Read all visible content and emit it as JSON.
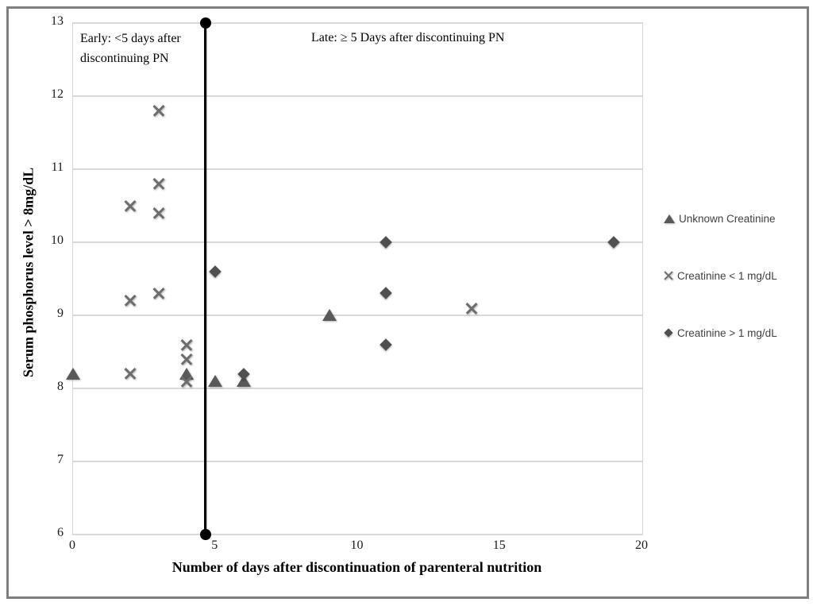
{
  "figure": {
    "border_color": "#7f7f7f",
    "gridline_color": "#d9d9d9",
    "background_color": "#ffffff"
  },
  "chart_data": {
    "type": "scatter",
    "title": "",
    "xlabel": "Number of days after discontinuation of parenteral nutrition",
    "ylabel": "Serum phosphorus level > 8mg/dL",
    "xlim": [
      0,
      20
    ],
    "ylim": [
      6,
      13
    ],
    "x_ticks": [
      0,
      5,
      10,
      15,
      20
    ],
    "y_ticks": [
      6,
      7,
      8,
      9,
      10,
      11,
      12,
      13
    ],
    "grid": "horizontal-only",
    "legend_position": "right",
    "annotations": {
      "early": "Early: <5 days after discontinuing PN",
      "late": "Late: ≥ 5 Days after discontinuing PN"
    },
    "divider": {
      "x": 4.65,
      "from_y": 6,
      "to_y": 13,
      "color": "#000000",
      "end_caps": "filled-circle"
    },
    "series": [
      {
        "name": "Unknown Creatinine",
        "marker": "triangle",
        "color": "#595959",
        "points": [
          [
            0,
            8.2
          ],
          [
            4,
            8.2
          ],
          [
            5,
            8.1
          ],
          [
            6,
            8.1
          ],
          [
            9,
            9.0
          ]
        ]
      },
      {
        "name": "Creatinine < 1 mg/dL",
        "marker": "x",
        "color": "#6d6d6d",
        "points": [
          [
            2,
            10.5
          ],
          [
            2,
            9.2
          ],
          [
            2,
            8.2
          ],
          [
            3,
            11.8
          ],
          [
            3,
            10.8
          ],
          [
            3,
            10.4
          ],
          [
            3,
            9.3
          ],
          [
            4,
            8.6
          ],
          [
            4,
            8.4
          ],
          [
            4,
            8.1
          ],
          [
            14,
            9.1
          ]
        ]
      },
      {
        "name": "Creatinine > 1 mg/dL",
        "marker": "diamond",
        "color": "#4f4f4f",
        "points": [
          [
            5,
            9.6
          ],
          [
            6,
            8.2
          ],
          [
            11,
            10.0
          ],
          [
            11,
            9.3
          ],
          [
            11,
            8.6
          ],
          [
            19,
            10.0
          ]
        ]
      }
    ]
  }
}
